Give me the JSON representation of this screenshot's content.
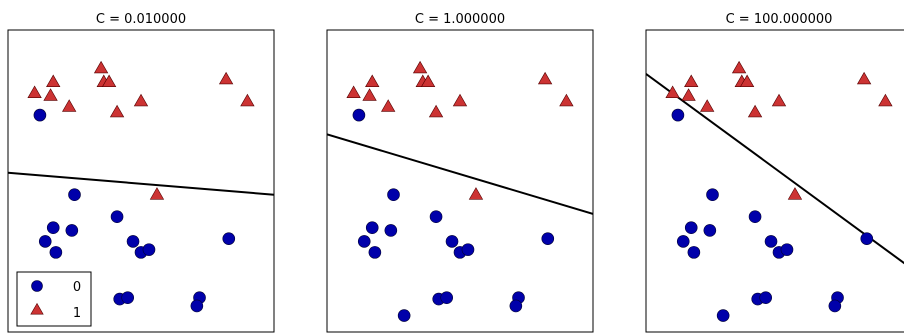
{
  "chart_data": [
    {
      "type": "scatter",
      "title": "C = 0.010000",
      "xlabel": "",
      "ylabel": "",
      "xlim": [
        0,
        10
      ],
      "ylim": [
        0,
        11
      ],
      "grid": false,
      "legend": {
        "placement": "lower-left",
        "entries": [
          "0",
          "1"
        ]
      },
      "series": [
        {
          "name": "0",
          "marker": "circle",
          "color": "#0000aa",
          "points": [
            [
              1.2,
              7.9
            ],
            [
              2.5,
              5.0
            ],
            [
              1.7,
              3.8
            ],
            [
              2.4,
              3.7
            ],
            [
              1.4,
              3.3
            ],
            [
              1.8,
              2.9
            ],
            [
              4.1,
              4.2
            ],
            [
              4.7,
              3.3
            ],
            [
              5.0,
              2.9
            ],
            [
              5.3,
              3.0
            ],
            [
              8.3,
              3.4
            ],
            [
              4.2,
              1.2
            ],
            [
              4.5,
              1.25
            ],
            [
              7.2,
              1.25
            ],
            [
              7.1,
              0.95
            ],
            [
              2.9,
              0.6
            ]
          ]
        },
        {
          "name": "1",
          "marker": "triangle",
          "color": "#cc3333",
          "points": [
            [
              1.0,
              8.7
            ],
            [
              1.7,
              9.1
            ],
            [
              1.6,
              8.6
            ],
            [
              2.3,
              8.2
            ],
            [
              3.5,
              9.6
            ],
            [
              3.6,
              9.1
            ],
            [
              3.8,
              9.1
            ],
            [
              4.1,
              8.0
            ],
            [
              5.0,
              8.4
            ],
            [
              8.2,
              9.2
            ],
            [
              9.0,
              8.4
            ],
            [
              5.6,
              5.0
            ]
          ]
        }
      ],
      "boundary": {
        "x": [
          0,
          10
        ],
        "y": [
          5.8,
          5.0
        ]
      }
    },
    {
      "type": "scatter",
      "title": "C = 1.000000",
      "xlabel": "",
      "ylabel": "",
      "xlim": [
        0,
        10
      ],
      "ylim": [
        0,
        11
      ],
      "grid": false,
      "series": [
        {
          "name": "0",
          "marker": "circle",
          "color": "#0000aa",
          "points": [
            [
              1.2,
              7.9
            ],
            [
              2.5,
              5.0
            ],
            [
              1.7,
              3.8
            ],
            [
              2.4,
              3.7
            ],
            [
              1.4,
              3.3
            ],
            [
              1.8,
              2.9
            ],
            [
              4.1,
              4.2
            ],
            [
              4.7,
              3.3
            ],
            [
              5.0,
              2.9
            ],
            [
              5.3,
              3.0
            ],
            [
              8.3,
              3.4
            ],
            [
              4.2,
              1.2
            ],
            [
              4.5,
              1.25
            ],
            [
              7.2,
              1.25
            ],
            [
              7.1,
              0.95
            ],
            [
              2.9,
              0.6
            ]
          ]
        },
        {
          "name": "1",
          "marker": "triangle",
          "color": "#cc3333",
          "points": [
            [
              1.0,
              8.7
            ],
            [
              1.7,
              9.1
            ],
            [
              1.6,
              8.6
            ],
            [
              2.3,
              8.2
            ],
            [
              3.5,
              9.6
            ],
            [
              3.6,
              9.1
            ],
            [
              3.8,
              9.1
            ],
            [
              4.1,
              8.0
            ],
            [
              5.0,
              8.4
            ],
            [
              8.2,
              9.2
            ],
            [
              9.0,
              8.4
            ],
            [
              5.6,
              5.0
            ]
          ]
        }
      ],
      "boundary": {
        "x": [
          0,
          10
        ],
        "y": [
          7.2,
          4.3
        ]
      }
    },
    {
      "type": "scatter",
      "title": "C = 100.000000",
      "xlabel": "",
      "ylabel": "",
      "xlim": [
        0,
        10
      ],
      "ylim": [
        0,
        11
      ],
      "grid": false,
      "series": [
        {
          "name": "0",
          "marker": "circle",
          "color": "#0000aa",
          "points": [
            [
              1.2,
              7.9
            ],
            [
              2.5,
              5.0
            ],
            [
              1.7,
              3.8
            ],
            [
              2.4,
              3.7
            ],
            [
              1.4,
              3.3
            ],
            [
              1.8,
              2.9
            ],
            [
              4.1,
              4.2
            ],
            [
              4.7,
              3.3
            ],
            [
              5.0,
              2.9
            ],
            [
              5.3,
              3.0
            ],
            [
              8.3,
              3.4
            ],
            [
              4.2,
              1.2
            ],
            [
              4.5,
              1.25
            ],
            [
              7.2,
              1.25
            ],
            [
              7.1,
              0.95
            ],
            [
              2.9,
              0.6
            ]
          ]
        },
        {
          "name": "1",
          "marker": "triangle",
          "color": "#cc3333",
          "points": [
            [
              1.0,
              8.7
            ],
            [
              1.7,
              9.1
            ],
            [
              1.6,
              8.6
            ],
            [
              2.3,
              8.2
            ],
            [
              3.5,
              9.6
            ],
            [
              3.6,
              9.1
            ],
            [
              3.8,
              9.1
            ],
            [
              4.1,
              8.0
            ],
            [
              5.0,
              8.4
            ],
            [
              8.2,
              9.2
            ],
            [
              9.0,
              8.4
            ],
            [
              5.6,
              5.0
            ]
          ]
        }
      ],
      "boundary": {
        "x": [
          0,
          10
        ],
        "y": [
          9.4,
          2.3
        ]
      }
    }
  ]
}
